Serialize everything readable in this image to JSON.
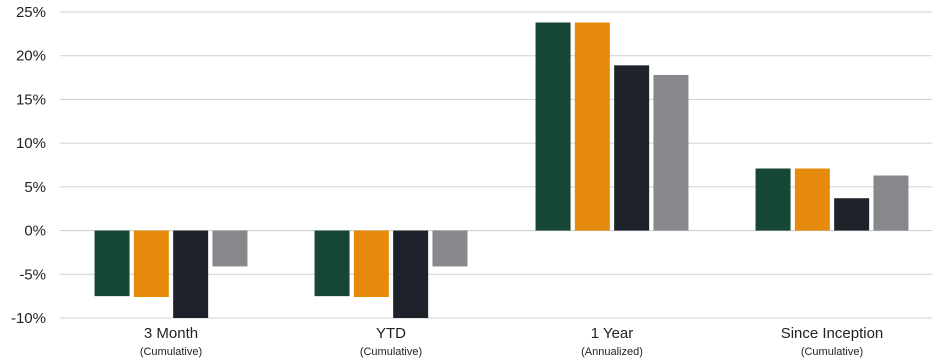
{
  "chart_data": {
    "type": "bar",
    "categories": [
      {
        "label": "3 Month",
        "sublabel": "(Cumulative)"
      },
      {
        "label": "YTD",
        "sublabel": "(Cumulative)"
      },
      {
        "label": "1 Year",
        "sublabel": "(Annualized)"
      },
      {
        "label": "Since Inception",
        "sublabel": "(Cumulative)"
      }
    ],
    "series": [
      {
        "color": "#164734",
        "values": [
          -7.5,
          -7.5,
          23.8,
          7.1
        ]
      },
      {
        "color": "#E68A0B",
        "values": [
          -7.6,
          -7.6,
          23.8,
          7.1
        ]
      },
      {
        "color": "#1E232B",
        "values": [
          -10.0,
          -10.0,
          18.9,
          3.7
        ]
      },
      {
        "color": "#86888C",
        "values": [
          -4.1,
          -4.1,
          17.8,
          6.3
        ]
      }
    ],
    "ylim": [
      -10,
      25
    ],
    "yticks": [
      25,
      20,
      15,
      10,
      5,
      0,
      -5,
      -10
    ],
    "ytick_labels": [
      "25%",
      "20%",
      "15%",
      "10%",
      "5%",
      "0%",
      "-5%",
      "-10%"
    ],
    "grid": true,
    "title": "",
    "xlabel": "",
    "ylabel": ""
  }
}
